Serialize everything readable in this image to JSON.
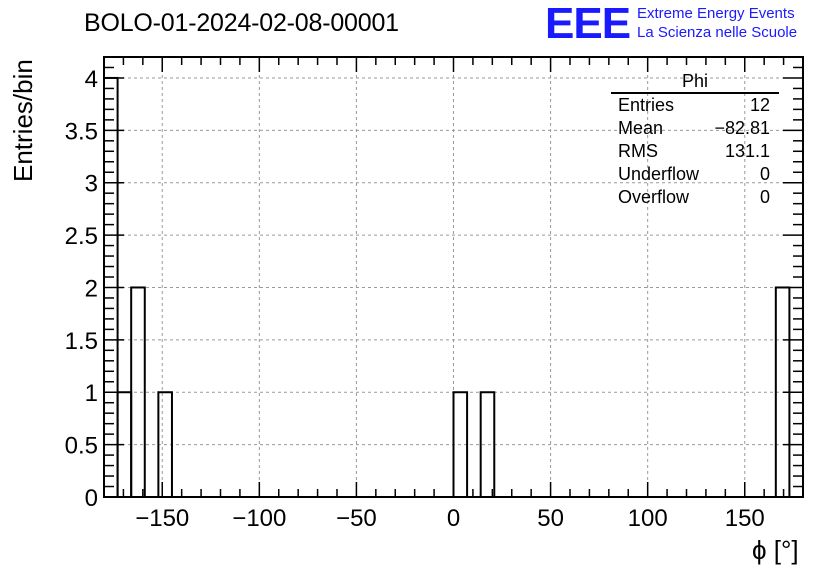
{
  "title": "BOLO-01-2024-02-08-00001",
  "logo": {
    "mark": "EEE",
    "line1": "Extreme Energy Events",
    "line2": "La Scienza nelle Scuole",
    "color": "#1a1aff"
  },
  "stats_box": {
    "header": "Phi",
    "rows": [
      {
        "label": "Entries",
        "value": "12"
      },
      {
        "label": "Mean",
        "value": "−82.81"
      },
      {
        "label": "RMS",
        "value": "131.1"
      },
      {
        "label": "Underflow",
        "value": "0"
      },
      {
        "label": "Overflow",
        "value": "0"
      }
    ]
  },
  "chart_data": {
    "type": "bar",
    "title": "BOLO-01-2024-02-08-00001",
    "xlabel": "ϕ [°]",
    "ylabel": "Entries/bin",
    "xlim": [
      -180,
      180
    ],
    "ylim": [
      0,
      4.2
    ],
    "grid": true,
    "bin_edges": [
      -180,
      -173,
      -166,
      -159,
      -152,
      -145,
      0,
      7,
      14,
      21,
      166,
      173,
      180
    ],
    "bins": [
      {
        "low": -180,
        "high": -173,
        "value": 4
      },
      {
        "low": -173,
        "high": -166,
        "value": 1
      },
      {
        "low": -166,
        "high": -159,
        "value": 2
      },
      {
        "low": -159,
        "high": -152,
        "value": 0
      },
      {
        "low": -152,
        "high": -145,
        "value": 1
      },
      {
        "low": 0,
        "high": 7,
        "value": 1
      },
      {
        "low": 7,
        "high": 14,
        "value": 0
      },
      {
        "low": 14,
        "high": 21,
        "value": 1
      },
      {
        "low": 166,
        "high": 173,
        "value": 2
      },
      {
        "low": 173,
        "high": 180,
        "value": 0
      }
    ],
    "x_ticks": [
      -150,
      -100,
      -50,
      0,
      50,
      100,
      150
    ],
    "x_tick_labels": [
      "−150",
      "−100",
      "−50",
      "0",
      "50",
      "100",
      "150"
    ],
    "y_ticks": [
      0,
      0.5,
      1,
      1.5,
      2,
      2.5,
      3,
      3.5,
      4
    ],
    "y_tick_labels": [
      "0",
      "0.5",
      "1",
      "1.5",
      "2",
      "2.5",
      "3",
      "3.5",
      "4"
    ]
  }
}
